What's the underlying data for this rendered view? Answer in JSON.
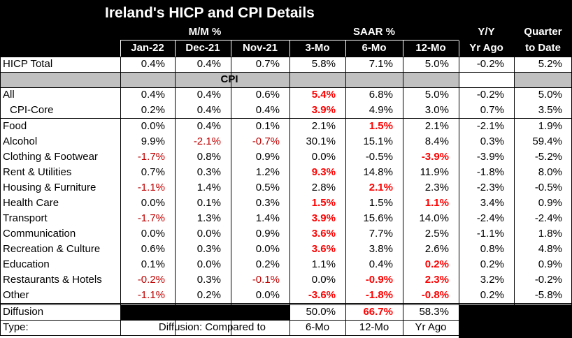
{
  "title": "Ireland's HICP and CPI Details",
  "header": {
    "groups": [
      "M/M %",
      "SAAR %"
    ],
    "yy": [
      "Y/Y",
      "Yr Ago"
    ],
    "qtd": [
      "Quarter",
      "to Date"
    ],
    "columns": [
      "Jan-22",
      "Dec-21",
      "Nov-21",
      "3-Mo",
      "6-Mo",
      "12-Mo"
    ]
  },
  "section": "CPI",
  "rows": [
    {
      "label": "HICP Total",
      "cells": [
        "0.4%",
        "0.4%",
        "0.7%",
        "5.8%",
        "7.1%",
        "5.0%",
        "-0.2%",
        "5.2%"
      ]
    },
    {
      "label": "All",
      "cells": [
        "0.4%",
        "0.4%",
        "0.6%",
        "5.4%",
        "6.8%",
        "5.0%",
        "-0.2%",
        "5.0%"
      ]
    },
    {
      "label": "CPI-Core",
      "cells": [
        "0.2%",
        "0.4%",
        "0.4%",
        "3.9%",
        "4.9%",
        "3.0%",
        "0.7%",
        "3.5%"
      ]
    },
    {
      "label": "Food",
      "cells": [
        "0.0%",
        "0.4%",
        "0.1%",
        "2.1%",
        "1.5%",
        "2.1%",
        "-2.1%",
        "1.9%"
      ]
    },
    {
      "label": "Alcohol",
      "cells": [
        "9.9%",
        "-2.1%",
        "-0.7%",
        "30.1%",
        "15.1%",
        "8.4%",
        "0.3%",
        "59.4%"
      ]
    },
    {
      "label": "Clothing & Footwear",
      "cells": [
        "-1.7%",
        "0.8%",
        "0.9%",
        "0.0%",
        "-0.5%",
        "-3.9%",
        "-3.9%",
        "-5.2%"
      ]
    },
    {
      "label": "Rent & Utilities",
      "cells": [
        "0.7%",
        "0.3%",
        "1.2%",
        "9.3%",
        "14.8%",
        "11.9%",
        "-1.8%",
        "8.0%"
      ]
    },
    {
      "label": "Housing & Furniture",
      "cells": [
        "-1.1%",
        "1.4%",
        "0.5%",
        "2.8%",
        "2.1%",
        "2.3%",
        "-2.3%",
        "-0.5%"
      ]
    },
    {
      "label": "Health Care",
      "cells": [
        "0.0%",
        "0.1%",
        "0.3%",
        "1.5%",
        "1.5%",
        "1.1%",
        "3.4%",
        "0.9%"
      ]
    },
    {
      "label": "Transport",
      "cells": [
        "-1.7%",
        "1.3%",
        "1.4%",
        "3.9%",
        "15.6%",
        "14.0%",
        "-2.4%",
        "-2.4%"
      ]
    },
    {
      "label": "Communication",
      "cells": [
        "0.0%",
        "0.0%",
        "0.9%",
        "3.6%",
        "7.7%",
        "2.5%",
        "-1.1%",
        "1.8%"
      ]
    },
    {
      "label": "Recreation & Culture",
      "cells": [
        "0.6%",
        "0.3%",
        "0.0%",
        "3.6%",
        "3.8%",
        "2.6%",
        "0.8%",
        "4.8%"
      ]
    },
    {
      "label": "Education",
      "cells": [
        "0.1%",
        "0.0%",
        "0.2%",
        "1.1%",
        "0.4%",
        "0.2%",
        "0.2%",
        "0.9%"
      ]
    },
    {
      "label": "Restaurants & Hotels",
      "cells": [
        "-0.2%",
        "0.3%",
        "-0.1%",
        "0.0%",
        "-0.9%",
        "2.3%",
        "3.2%",
        "-0.2%"
      ]
    },
    {
      "label": "Other",
      "cells": [
        "-1.1%",
        "0.2%",
        "0.0%",
        "-3.6%",
        "-1.8%",
        "-0.8%",
        "0.2%",
        "-5.8%"
      ]
    }
  ],
  "diffusion": {
    "label": "Diffusion",
    "cells": [
      "50.0%",
      "66.7%",
      "58.3%"
    ]
  },
  "type": {
    "label": "Type:",
    "note": "Diffusion: Compared to",
    "cells": [
      "6-Mo",
      "12-Mo",
      "Yr Ago"
    ]
  }
}
